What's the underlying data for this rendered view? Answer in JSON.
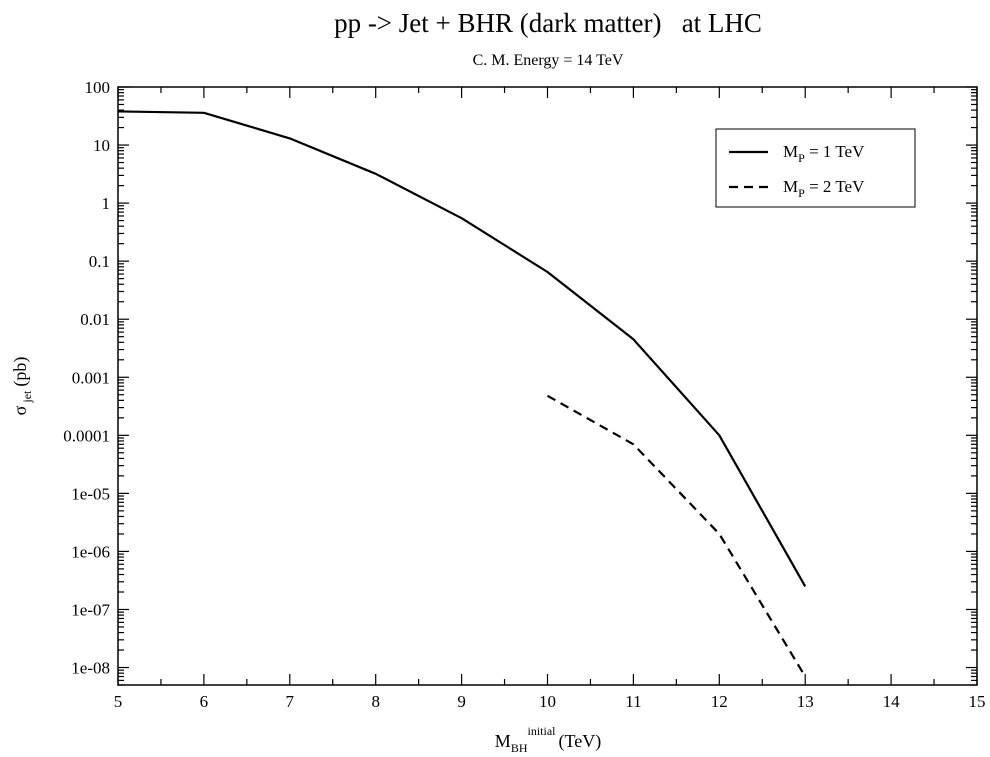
{
  "chart_data": {
    "type": "line",
    "title": "pp -> Jet + BHR (dark matter)   at LHC",
    "subtitle": "C. M. Energy = 14 TeV",
    "xlabel": {
      "main": "M",
      "sub": "BH",
      "sup": "initial",
      "unit": "(TeV)"
    },
    "ylabel": {
      "main": "σ",
      "sub": "jet",
      "unit": "(pb)"
    },
    "xlim": [
      5,
      15
    ],
    "ylim": [
      5e-09,
      100
    ],
    "yscale": "log",
    "xticks": [
      "5",
      "6",
      "7",
      "8",
      "9",
      "10",
      "11",
      "12",
      "13",
      "14",
      "15"
    ],
    "yticks": [
      {
        "value": 100,
        "label": "100"
      },
      {
        "value": 10,
        "label": "10"
      },
      {
        "value": 1,
        "label": "1"
      },
      {
        "value": 0.1,
        "label": "0.1"
      },
      {
        "value": 0.01,
        "label": "0.01"
      },
      {
        "value": 0.001,
        "label": "0.001"
      },
      {
        "value": 0.0001,
        "label": "0.0001"
      },
      {
        "value": 1e-05,
        "label": "1e-05"
      },
      {
        "value": 1e-06,
        "label": "1e-06"
      },
      {
        "value": 1e-07,
        "label": "1e-07"
      },
      {
        "value": 1e-08,
        "label": "1e-08"
      }
    ],
    "grid": false,
    "legend_position": "top-right",
    "series": [
      {
        "name": "M_P = 1 TeV",
        "legend": {
          "main": "M",
          "sub": "P",
          "rest": " = 1 TeV"
        },
        "style": "solid",
        "color": "#000000",
        "x": [
          5,
          6,
          7,
          8,
          9,
          10,
          11,
          12,
          13
        ],
        "y": [
          38,
          36,
          13,
          3.2,
          0.55,
          0.065,
          0.0045,
          0.0001,
          2.5e-07
        ]
      },
      {
        "name": "M_P = 2 TeV",
        "legend": {
          "main": "M",
          "sub": "P",
          "rest": " = 2 TeV"
        },
        "style": "dashed",
        "color": "#000000",
        "x": [
          10,
          11,
          12,
          13
        ],
        "y": [
          0.00048,
          7e-05,
          2e-06,
          7e-09
        ]
      }
    ]
  }
}
